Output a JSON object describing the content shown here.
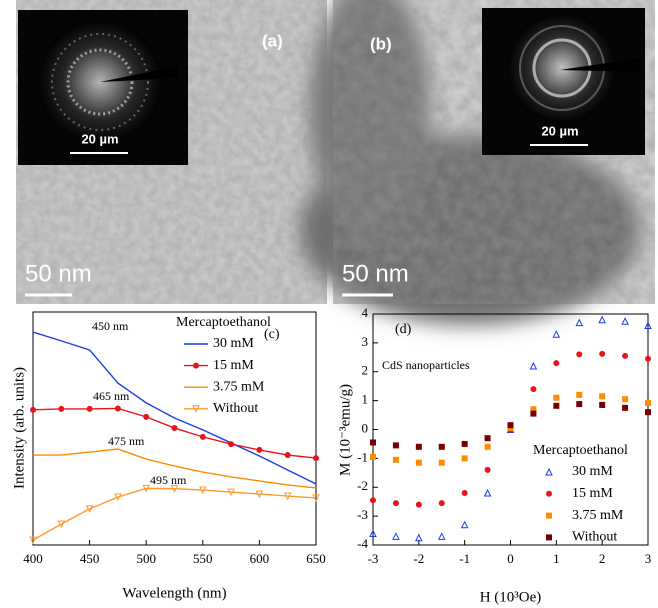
{
  "images": [
    {
      "label": "(a)",
      "scale_bar": "50 nm",
      "inset_scale_bar": "20 µm"
    },
    {
      "label": "(b)",
      "scale_bar": "50 nm",
      "inset_scale_bar": "20 µm"
    }
  ],
  "chart_data": [
    {
      "type": "line",
      "panel": "(c)",
      "x_label": "Wavelength (nm)",
      "y_label": "Intensity (arb. units)",
      "legend_title": "Mercaptoethanol",
      "legend": "upper right",
      "grid": false,
      "xlim": [
        400,
        650
      ],
      "xticks": [
        400,
        450,
        500,
        550,
        600,
        650
      ],
      "ylim": [
        0,
        100
      ],
      "x": [
        400,
        425,
        450,
        475,
        500,
        525,
        550,
        575,
        600,
        625,
        650
      ],
      "series": [
        {
          "name": "30 mM",
          "color": "#1a3fe6",
          "marker": "none",
          "values": [
            91.4,
            87.6,
            83.7,
            69.5,
            61,
            54.5,
            49.4,
            43.8,
            38.2,
            32.2,
            26.2
          ]
        },
        {
          "name": "15 mM",
          "color": "#e8141c",
          "marker": "circle",
          "values": [
            58,
            58.4,
            58.4,
            58.6,
            55,
            50.2,
            46.4,
            43.3,
            40.8,
            38.6,
            37.3
          ]
        },
        {
          "name": "3.75 mM",
          "color": "#ff8c00",
          "marker": "none",
          "values": [
            38.6,
            38.6,
            39.9,
            41.2,
            36.9,
            33.9,
            31.3,
            29.2,
            27.5,
            25.8,
            24.5
          ]
        },
        {
          "name": "Without",
          "color": "#ff9a2e",
          "marker": "triangle-down",
          "values": [
            2.1,
            9,
            15.5,
            20.6,
            24.3,
            24.2,
            23.6,
            22.7,
            21.9,
            21,
            20.2
          ]
        }
      ],
      "annotations": [
        {
          "text": "450 nm",
          "color": "#1a3fe6"
        },
        {
          "text": "465 nm",
          "color": "#e8141c"
        },
        {
          "text": "475 nm",
          "color": "#ff8c00"
        },
        {
          "text": "495 nm",
          "color": "#ff8c00"
        }
      ]
    },
    {
      "type": "scatter",
      "panel": "(d)",
      "x_label": "H (10³Oe)",
      "y_label": "M (10⁻³emu/g)",
      "legend_title": "Mercaptoethanol",
      "legend": "lower right",
      "grid": false,
      "xlim": [
        -3,
        3
      ],
      "xticks": [
        -3,
        -2,
        -1,
        0,
        1,
        2,
        3
      ],
      "ylim": [
        -4,
        4
      ],
      "yticks": [
        -4,
        -3,
        -2,
        -1,
        0,
        1,
        2,
        3,
        4
      ],
      "x": [
        -3,
        -2.5,
        -2,
        -1.5,
        -1,
        -0.5,
        0,
        0.5,
        1,
        1.5,
        2,
        2.5,
        3
      ],
      "series": [
        {
          "name": "30 mM",
          "color": "#1a3fe6",
          "marker": "triangle",
          "values": [
            -3.6,
            -3.7,
            -3.75,
            -3.7,
            -3.3,
            -2.2,
            0,
            2.2,
            3.3,
            3.7,
            3.8,
            3.75,
            3.6
          ]
        },
        {
          "name": "15 mM",
          "color": "#e8141c",
          "marker": "circle",
          "values": [
            -2.45,
            -2.55,
            -2.6,
            -2.55,
            -2.2,
            -1.4,
            0,
            1.4,
            2.3,
            2.6,
            2.62,
            2.55,
            2.45
          ]
        },
        {
          "name": "3.75 mM",
          "color": "#ff8c00",
          "marker": "square",
          "values": [
            -0.95,
            -1.05,
            -1.15,
            -1.15,
            -1.0,
            -0.6,
            0.05,
            0.7,
            1.1,
            1.2,
            1.15,
            1.05,
            0.92
          ]
        },
        {
          "name": "Without",
          "color": "#7a0000",
          "marker": "square",
          "values": [
            -0.45,
            -0.55,
            -0.6,
            -0.6,
            -0.5,
            -0.3,
            0.15,
            0.55,
            0.82,
            0.88,
            0.85,
            0.75,
            0.6
          ]
        }
      ],
      "annotations": [
        {
          "text": "CdS nanoparticles",
          "color": "#000000"
        }
      ]
    }
  ]
}
